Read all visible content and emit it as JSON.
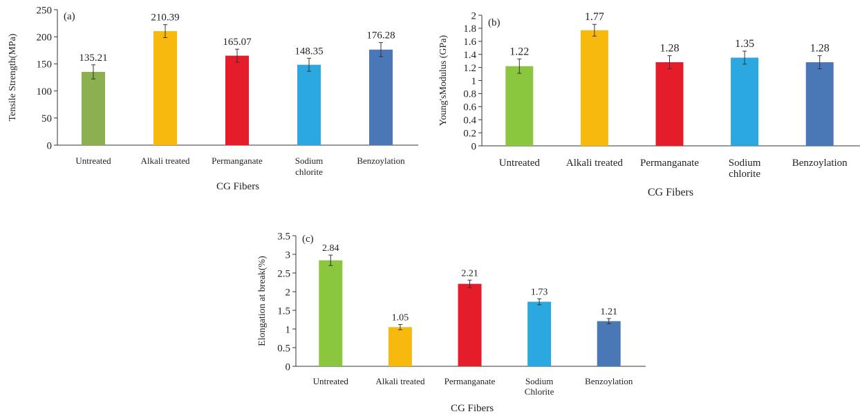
{
  "chart_data": [
    {
      "type": "bar",
      "panel_label": "(a)",
      "categories": [
        "Untreated",
        "Alkali treated",
        "Permanganate",
        "Sodium chlorite",
        "Benzoylation"
      ],
      "category_lines": [
        [
          "Untreated"
        ],
        [
          "Alkali treated"
        ],
        [
          "Permanganate"
        ],
        [
          "Sodium",
          "chlorite"
        ],
        [
          "Benzoylation"
        ]
      ],
      "values": [
        135.21,
        210.39,
        165.07,
        148.35,
        176.28
      ],
      "value_labels": [
        "135.21",
        "210.39",
        "165.07",
        "148.35",
        "176.28"
      ],
      "errors": [
        13,
        12,
        12,
        12,
        13
      ],
      "colors": [
        "#8cb04f",
        "#f8b90f",
        "#e51d2a",
        "#2aa8df",
        "#4a78b6"
      ],
      "xlabel": "CG Fibers",
      "ylabel": "Tensile Strength(MPa)",
      "ylim": [
        0,
        250
      ],
      "yticks": [
        0,
        50,
        100,
        150,
        200,
        250
      ],
      "ytick_labels": [
        "0",
        "50",
        "100",
        "150",
        "200",
        "250"
      ]
    },
    {
      "type": "bar",
      "panel_label": "(b)",
      "categories": [
        "Untreated",
        "Alkali treated",
        "Permanganate",
        "Sodium chlorite",
        "Benzoylation"
      ],
      "category_lines": [
        [
          "Untreated"
        ],
        [
          "Alkali treated"
        ],
        [
          "Permanganate"
        ],
        [
          "Sodium",
          "chlorite"
        ],
        [
          "Benzoylation"
        ]
      ],
      "values": [
        1.22,
        1.77,
        1.28,
        1.35,
        1.28
      ],
      "value_labels": [
        "1.22",
        "1.77",
        "1.28",
        "1.35",
        "1.28"
      ],
      "errors": [
        0.11,
        0.09,
        0.1,
        0.1,
        0.1
      ],
      "colors": [
        "#8bc63f",
        "#f8b90f",
        "#e51d2a",
        "#2aa8df",
        "#4a78b6"
      ],
      "xlabel": "CG Fibers",
      "ylabel": "Young'sModulus (GPa)",
      "ylim": [
        0,
        2
      ],
      "yticks": [
        0,
        0.2,
        0.4,
        0.6,
        0.8,
        1,
        1.2,
        1.4,
        1.6,
        1.8,
        2
      ],
      "ytick_labels": [
        "0",
        "0.2",
        "0.4",
        "0.6",
        "0.8",
        "1",
        "1.2",
        "1.4",
        "1.6",
        "1.8",
        "2"
      ]
    },
    {
      "type": "bar",
      "panel_label": "(c)",
      "categories": [
        "Untreated",
        "Alkali treated",
        "Permanganate",
        "Sodium Chlorite",
        "Benzoylation"
      ],
      "category_lines": [
        [
          "Untreated"
        ],
        [
          "Alkali treated"
        ],
        [
          "Permanganate"
        ],
        [
          "Sodium",
          "Chlorite"
        ],
        [
          "Benzoylation"
        ]
      ],
      "values": [
        2.84,
        1.05,
        2.21,
        1.73,
        1.21
      ],
      "value_labels": [
        "2.84",
        "1.05",
        "2.21",
        "1.73",
        "1.21"
      ],
      "errors": [
        0.14,
        0.07,
        0.1,
        0.08,
        0.07
      ],
      "colors": [
        "#8bc63f",
        "#f8b90f",
        "#e51d2a",
        "#2aa8df",
        "#4a78b6"
      ],
      "xlabel": "CG Fibers",
      "ylabel": "Elongation at break(%)",
      "ylim": [
        0,
        3.5
      ],
      "yticks": [
        0,
        0.5,
        1,
        1.5,
        2,
        2.5,
        3,
        3.5
      ],
      "ytick_labels": [
        "0",
        "0.5",
        "1",
        "1.5",
        "2",
        "2.5",
        "3",
        "3.5"
      ]
    }
  ]
}
